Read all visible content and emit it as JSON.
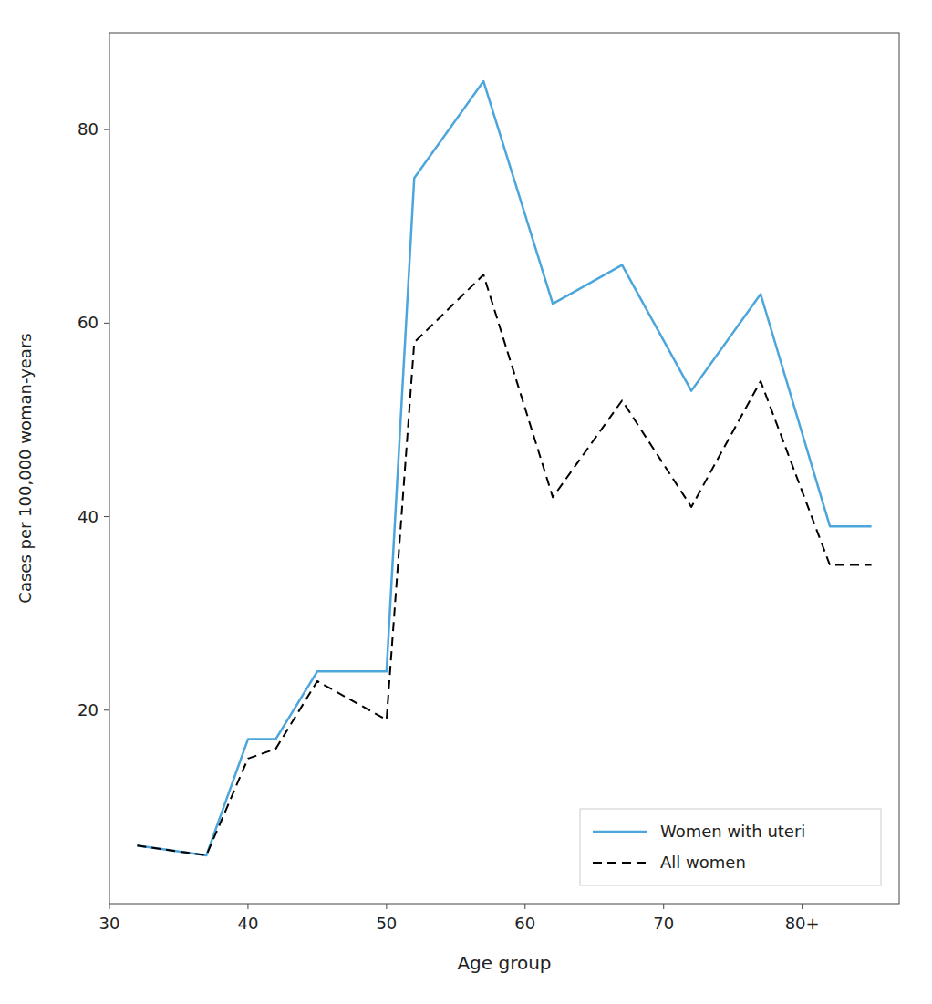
{
  "chart_data": {
    "type": "line",
    "xlabel": "Age group",
    "ylabel": "Cases per 100,000 woman-years",
    "x": [
      32,
      37,
      40,
      42,
      45,
      50,
      52,
      57,
      62,
      67,
      72,
      77,
      82,
      85
    ],
    "series": [
      {
        "name": "Women with uteri",
        "color": "#4da6db",
        "line_style": "solid",
        "values": [
          6,
          5,
          17,
          17,
          24,
          24,
          75,
          85,
          62,
          66,
          53,
          63,
          39,
          39
        ]
      },
      {
        "name": "All women",
        "color": "#000000",
        "line_style": "dashed",
        "values": [
          6,
          5,
          15,
          16,
          23,
          19,
          58,
          65,
          42,
          52,
          41,
          54,
          35,
          35
        ]
      }
    ],
    "xlim": [
      30,
      87
    ],
    "ylim": [
      0,
      90
    ],
    "xticks": [
      30,
      40,
      50,
      60,
      70,
      {
        "value": 80,
        "label": "80+"
      }
    ],
    "yticks": [
      20,
      40,
      60,
      80
    ],
    "grid": false,
    "legend": "lower right"
  }
}
